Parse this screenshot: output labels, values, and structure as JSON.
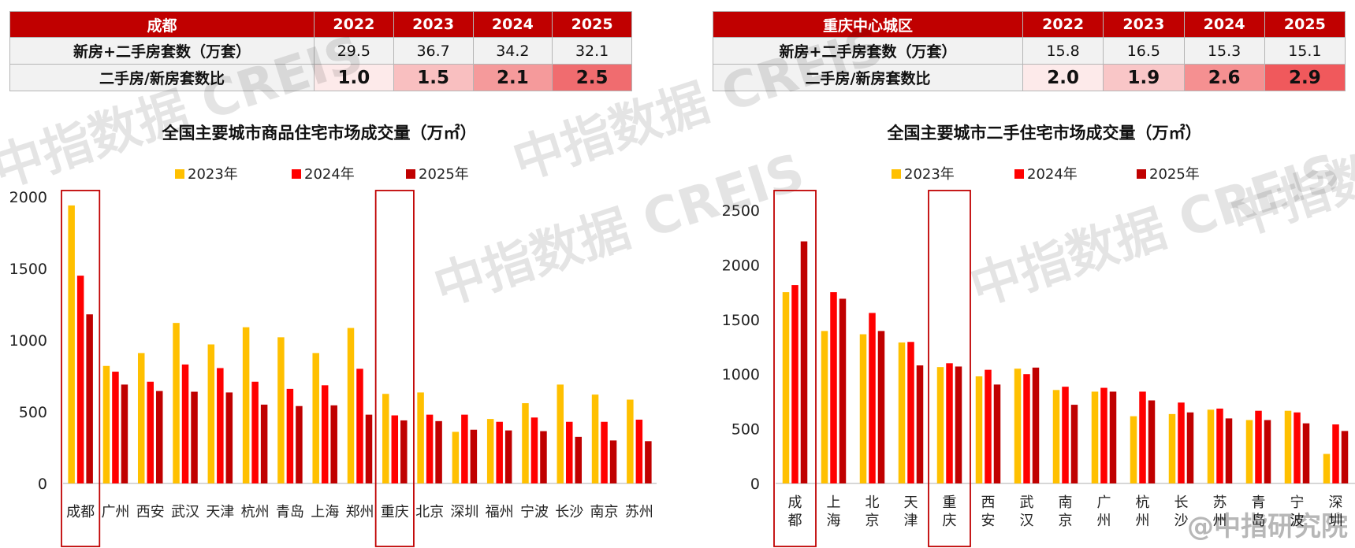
{
  "tables": [
    {
      "header": [
        "成都",
        "2022",
        "2023",
        "2024",
        "2025"
      ],
      "rows": [
        {
          "label": "新房+二手房套数（万套）",
          "values": [
            "29.5",
            "36.7",
            "34.2",
            "32.1"
          ]
        },
        {
          "label": "二手房/新房套数比",
          "values": [
            "1.0",
            "1.5",
            "2.1",
            "2.5"
          ],
          "colors": [
            "#fdeaea",
            "#f9bfc0",
            "#f59a9b",
            "#f06c6f"
          ]
        }
      ]
    },
    {
      "header": [
        "重庆中心城区",
        "2022",
        "2023",
        "2024",
        "2025"
      ],
      "rows": [
        {
          "label": "新房+二手房套数（万套）",
          "values": [
            "15.8",
            "16.5",
            "15.3",
            "15.1"
          ]
        },
        {
          "label": "二手房/新房套数比",
          "values": [
            "2.0",
            "1.9",
            "2.6",
            "2.9"
          ],
          "colors": [
            "#fdeaea",
            "#f9c6c7",
            "#f59091",
            "#f0595c"
          ]
        }
      ]
    }
  ],
  "watermark": {
    "text_cn": "中指数据",
    "text_en": "CREIS",
    "credit": "@中指研究院"
  },
  "chart_data": [
    {
      "type": "bar",
      "title": "全国主要城市商品住宅市场成交量（万㎡）",
      "categories": [
        "成都",
        "广州",
        "西安",
        "武汉",
        "天津",
        "杭州",
        "青岛",
        "上海",
        "郑州",
        "重庆",
        "北京",
        "深圳",
        "福州",
        "宁波",
        "长沙",
        "南京",
        "苏州"
      ],
      "series": [
        {
          "name": "2023年",
          "color": "#ffc000",
          "values": [
            1940,
            820,
            910,
            1120,
            970,
            1090,
            1020,
            910,
            1085,
            625,
            635,
            360,
            450,
            560,
            690,
            620,
            585
          ]
        },
        {
          "name": "2024年",
          "color": "#ff0000",
          "values": [
            1450,
            780,
            710,
            830,
            805,
            710,
            660,
            685,
            800,
            475,
            480,
            480,
            430,
            460,
            430,
            430,
            445
          ]
        },
        {
          "name": "2025年",
          "color": "#c00000",
          "values": [
            1180,
            690,
            645,
            640,
            635,
            550,
            540,
            545,
            480,
            440,
            435,
            375,
            370,
            365,
            325,
            300,
            295
          ]
        }
      ],
      "ylim": [
        0,
        2000
      ],
      "yticks": [
        0,
        500,
        1000,
        1500,
        2000
      ],
      "highlight": [
        "成都",
        "重庆"
      ],
      "legend": "top"
    },
    {
      "type": "bar",
      "title": "全国主要城市二手住宅市场成交量（万㎡）",
      "categories": [
        "成都",
        "上海",
        "北京",
        "天津",
        "重庆",
        "西安",
        "武汉",
        "南京",
        "广州",
        "杭州",
        "长沙",
        "苏州",
        "青岛",
        "宁波",
        "深圳"
      ],
      "series": [
        {
          "name": "2023年",
          "color": "#ffc000",
          "values": [
            1750,
            1395,
            1365,
            1290,
            1065,
            980,
            1050,
            855,
            840,
            615,
            635,
            675,
            580,
            665,
            270
          ]
        },
        {
          "name": "2024年",
          "color": "#ff0000",
          "values": [
            1815,
            1750,
            1560,
            1295,
            1100,
            1040,
            1000,
            885,
            875,
            840,
            740,
            685,
            665,
            650,
            540
          ]
        },
        {
          "name": "2025年",
          "color": "#c00000",
          "values": [
            2215,
            1690,
            1395,
            1080,
            1070,
            905,
            1060,
            720,
            840,
            760,
            650,
            595,
            580,
            550,
            480
          ]
        }
      ],
      "ylim": [
        0,
        2500
      ],
      "yticks": [
        0,
        500,
        1000,
        1500,
        2000,
        2500
      ],
      "highlight": [
        "成都",
        "重庆"
      ],
      "legend": "top"
    }
  ]
}
